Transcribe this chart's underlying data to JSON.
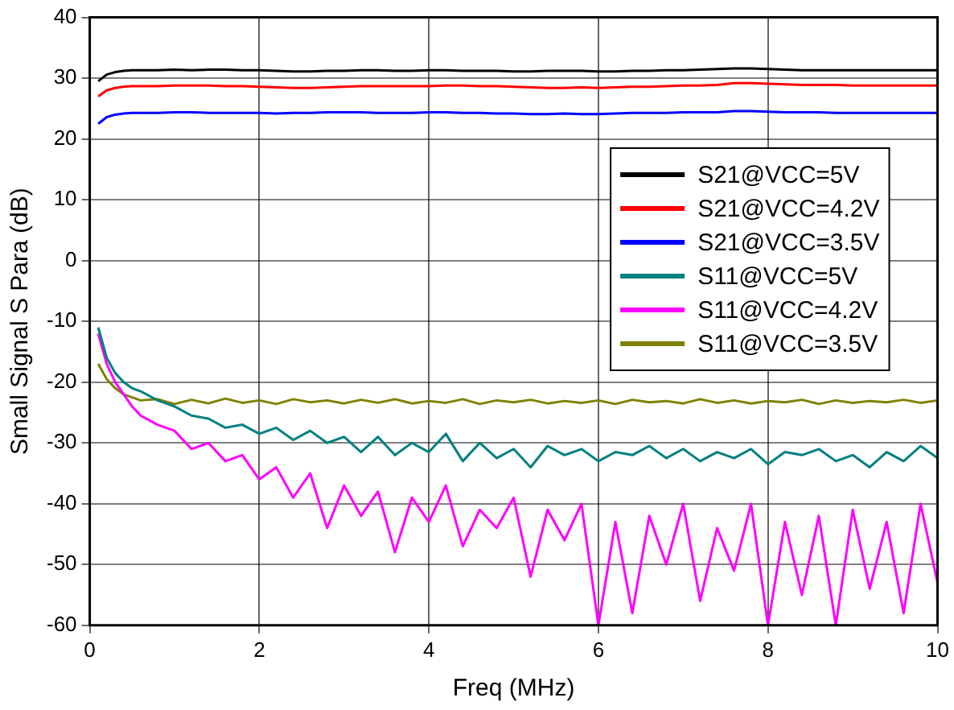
{
  "chart_data": {
    "type": "line",
    "xlabel": "Freq (MHz)",
    "ylabel": "Small Signal S Para (dB)",
    "x": [
      0.1,
      0.2,
      0.3,
      0.4,
      0.5,
      0.6,
      0.8,
      1,
      1.2,
      1.4,
      1.6,
      1.8,
      2,
      2.2,
      2.4,
      2.6,
      2.8,
      3,
      3.2,
      3.4,
      3.6,
      3.8,
      4,
      4.2,
      4.4,
      4.6,
      4.8,
      5,
      5.2,
      5.4,
      5.6,
      5.8,
      6,
      6.2,
      6.4,
      6.6,
      6.8,
      7,
      7.2,
      7.4,
      7.6,
      7.8,
      8,
      8.2,
      8.4,
      8.6,
      8.8,
      9,
      9.2,
      9.4,
      9.6,
      9.8,
      10
    ],
    "xlim": [
      0,
      10
    ],
    "xticks": [
      0,
      2,
      4,
      6,
      8,
      10
    ],
    "ylim": [
      -60,
      40
    ],
    "yticks": [
      -60,
      -50,
      -40,
      -30,
      -20,
      -10,
      0,
      10,
      20,
      30,
      40
    ],
    "grid": true,
    "legend": "top right",
    "marker": "none",
    "line_style": "solid",
    "series": [
      {
        "name": "S21@VCC=5V",
        "color": "#000000",
        "values": [
          29.5,
          30.6,
          31,
          31.2,
          31.3,
          31.3,
          31.3,
          31.4,
          31.3,
          31.4,
          31.4,
          31.3,
          31.3,
          31.2,
          31.1,
          31.1,
          31.2,
          31.2,
          31.3,
          31.3,
          31.2,
          31.2,
          31.3,
          31.3,
          31.2,
          31.2,
          31.2,
          31.1,
          31.1,
          31.2,
          31.2,
          31.2,
          31.1,
          31.1,
          31.2,
          31.2,
          31.3,
          31.3,
          31.4,
          31.5,
          31.6,
          31.6,
          31.5,
          31.4,
          31.3,
          31.3,
          31.3,
          31.3,
          31.3,
          31.3,
          31.3,
          31.3,
          31.3
        ]
      },
      {
        "name": "S21@VCC=4.2V",
        "color": "#ff0000",
        "values": [
          27,
          28,
          28.4,
          28.6,
          28.7,
          28.7,
          28.7,
          28.8,
          28.8,
          28.8,
          28.7,
          28.7,
          28.6,
          28.5,
          28.4,
          28.4,
          28.5,
          28.6,
          28.7,
          28.7,
          28.7,
          28.7,
          28.7,
          28.8,
          28.8,
          28.7,
          28.7,
          28.6,
          28.5,
          28.4,
          28.4,
          28.5,
          28.4,
          28.5,
          28.6,
          28.6,
          28.7,
          28.8,
          28.8,
          28.9,
          29.2,
          29.2,
          29.1,
          29,
          28.9,
          28.9,
          28.9,
          28.8,
          28.8,
          28.8,
          28.8,
          28.8,
          28.8
        ]
      },
      {
        "name": "S21@VCC=3.5V",
        "color": "#0000ff",
        "values": [
          22.5,
          23.6,
          24,
          24.2,
          24.3,
          24.3,
          24.3,
          24.4,
          24.4,
          24.3,
          24.3,
          24.3,
          24.3,
          24.2,
          24.3,
          24.3,
          24.4,
          24.4,
          24.4,
          24.3,
          24.3,
          24.3,
          24.4,
          24.4,
          24.3,
          24.3,
          24.2,
          24.2,
          24.1,
          24.1,
          24.2,
          24.1,
          24.1,
          24.2,
          24.3,
          24.3,
          24.3,
          24.4,
          24.4,
          24.4,
          24.6,
          24.6,
          24.5,
          24.4,
          24.4,
          24.4,
          24.3,
          24.3,
          24.3,
          24.3,
          24.3,
          24.3,
          24.3
        ]
      },
      {
        "name": "S11@VCC=5V",
        "color": "#008080",
        "values": [
          -11,
          -16,
          -18.5,
          -20,
          -21,
          -21.5,
          -23,
          -24,
          -25.5,
          -26,
          -27.5,
          -27,
          -28.5,
          -27.5,
          -29.5,
          -28,
          -30,
          -29,
          -31.5,
          -29,
          -32,
          -30,
          -31.5,
          -28.5,
          -33,
          -30,
          -32.5,
          -31,
          -34,
          -30.5,
          -32,
          -31,
          -33,
          -31.5,
          -32,
          -30.5,
          -32.5,
          -31,
          -33,
          -31.5,
          -32.5,
          -31,
          -33.5,
          -31.5,
          -32,
          -31,
          -33,
          -32,
          -34,
          -31.5,
          -33,
          -30.5,
          -32.5
        ]
      },
      {
        "name": "S11@VCC=4.2V",
        "color": "#ff00ff",
        "values": [
          -12,
          -17,
          -20,
          -22,
          -24,
          -25.5,
          -27,
          -28,
          -31,
          -30,
          -33,
          -32,
          -36,
          -34,
          -39,
          -35,
          -44,
          -37,
          -42,
          -38,
          -48,
          -39,
          -43,
          -37,
          -47,
          -41,
          -44,
          -39,
          -52,
          -41,
          -46,
          -40,
          -60,
          -43,
          -58,
          -42,
          -50,
          -40,
          -56,
          -44,
          -51,
          -40,
          -60,
          -43,
          -55,
          -42,
          -60,
          -41,
          -54,
          -43,
          -58,
          -40,
          -53
        ]
      },
      {
        "name": "S11@VCC=3.5V",
        "color": "#808000",
        "values": [
          -17,
          -19.5,
          -21,
          -22,
          -22.5,
          -23,
          -22.8,
          -23.6,
          -22.9,
          -23.5,
          -22.7,
          -23.4,
          -23,
          -23.6,
          -22.8,
          -23.3,
          -23,
          -23.5,
          -22.9,
          -23.4,
          -22.8,
          -23.5,
          -23.1,
          -23.4,
          -22.8,
          -23.6,
          -23,
          -23.3,
          -22.9,
          -23.5,
          -23.1,
          -23.4,
          -23,
          -23.6,
          -22.9,
          -23.3,
          -23.1,
          -23.5,
          -22.8,
          -23.4,
          -23,
          -23.5,
          -23.1,
          -23.3,
          -22.9,
          -23.6,
          -23,
          -23.4,
          -23.1,
          -23.3,
          -22.9,
          -23.4,
          -23
        ]
      }
    ]
  }
}
